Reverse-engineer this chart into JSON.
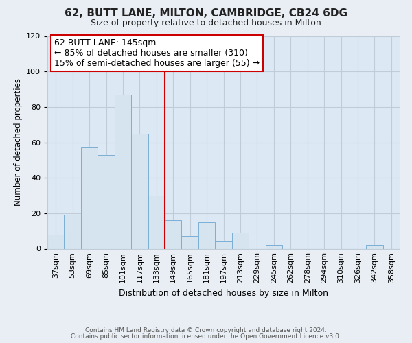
{
  "title": "62, BUTT LANE, MILTON, CAMBRIDGE, CB24 6DG",
  "subtitle": "Size of property relative to detached houses in Milton",
  "xlabel": "Distribution of detached houses by size in Milton",
  "ylabel": "Number of detached properties",
  "bin_labels": [
    "37sqm",
    "53sqm",
    "69sqm",
    "85sqm",
    "101sqm",
    "117sqm",
    "133sqm",
    "149sqm",
    "165sqm",
    "181sqm",
    "197sqm",
    "213sqm",
    "229sqm",
    "245sqm",
    "262sqm",
    "278sqm",
    "294sqm",
    "310sqm",
    "326sqm",
    "342sqm",
    "358sqm"
  ],
  "bar_values": [
    8,
    19,
    57,
    53,
    87,
    65,
    30,
    16,
    7,
    15,
    4,
    9,
    0,
    2,
    0,
    0,
    0,
    0,
    0,
    2,
    0
  ],
  "bar_color": "#d6e4f0",
  "bar_edge_color": "#7bafd4",
  "ylim": [
    0,
    120
  ],
  "yticks": [
    0,
    20,
    40,
    60,
    80,
    100,
    120
  ],
  "vline_bin_index": 7,
  "vline_color": "#cc0000",
  "annotation_title": "62 BUTT LANE: 145sqm",
  "annotation_line1": "← 85% of detached houses are smaller (310)",
  "annotation_line2": "15% of semi-detached houses are larger (55) →",
  "footer1": "Contains HM Land Registry data © Crown copyright and database right 2024.",
  "footer2": "Contains public sector information licensed under the Open Government Licence v3.0.",
  "background_color": "#e8eef4",
  "plot_background_color": "#dce8f4",
  "grid_color": "#c0cdd8",
  "title_fontsize": 11,
  "subtitle_fontsize": 9,
  "annotation_fontsize": 9,
  "xlabel_fontsize": 9,
  "ylabel_fontsize": 8.5,
  "tick_fontsize": 8,
  "footer_fontsize": 6.5
}
